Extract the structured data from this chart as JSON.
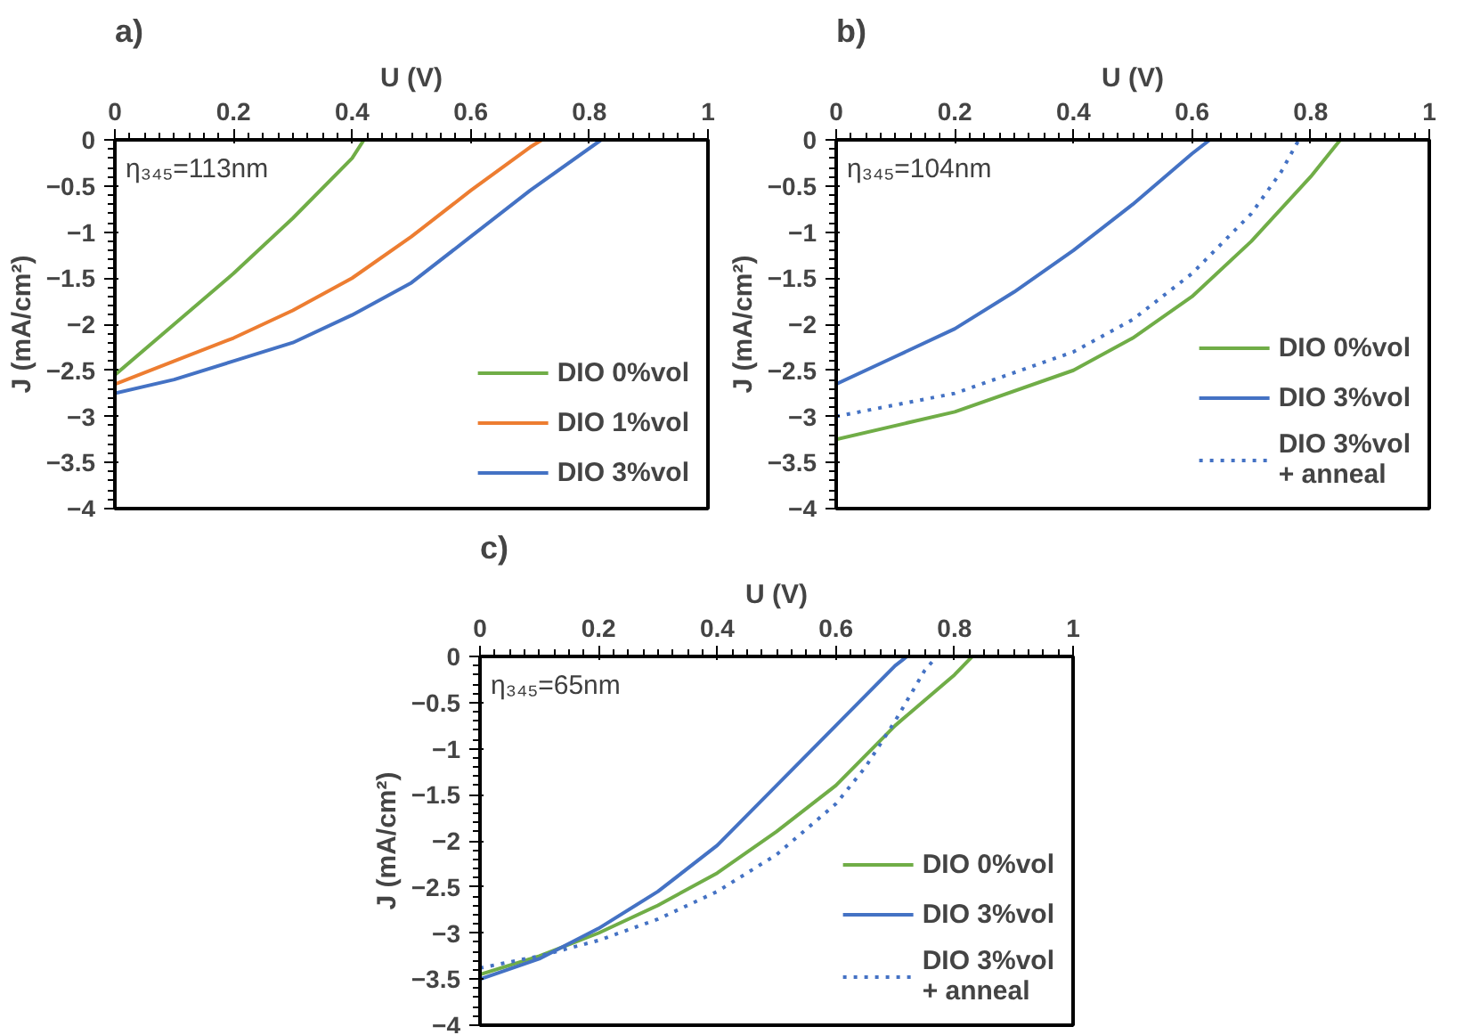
{
  "chart_data": [
    {
      "type": "line",
      "title": "a)",
      "xlabel": "U (V)",
      "ylabel": "J (mA/cm²)",
      "annotations": [
        "η₃₄₅=113nm"
      ],
      "xlim": [
        0,
        1
      ],
      "ylim": [
        -4,
        0
      ],
      "xticks": [
        0,
        0.2,
        0.4,
        0.6,
        0.8,
        1
      ],
      "yticks": [
        0,
        -0.5,
        -1,
        -1.5,
        -2,
        -2.5,
        -3,
        -3.5,
        -4
      ],
      "grid": false,
      "legend": "right",
      "series": [
        {
          "name": "DIO 0%vol",
          "color": "#70ad47",
          "x": [
            0,
            0.1,
            0.2,
            0.3,
            0.4,
            0.42
          ],
          "values": [
            -2.55,
            -2.0,
            -1.45,
            -0.85,
            -0.2,
            0
          ]
        },
        {
          "name": "DIO 1%vol",
          "color": "#ed7d31",
          "x": [
            0,
            0.1,
            0.2,
            0.3,
            0.4,
            0.5,
            0.6,
            0.7,
            0.72
          ],
          "values": [
            -2.65,
            -2.4,
            -2.15,
            -1.85,
            -1.5,
            -1.05,
            -0.55,
            -0.08,
            0
          ]
        },
        {
          "name": "DIO 3%vol",
          "color": "#4472c4",
          "x": [
            0,
            0.1,
            0.2,
            0.3,
            0.4,
            0.5,
            0.6,
            0.7,
            0.82
          ],
          "values": [
            -2.75,
            -2.6,
            -2.4,
            -2.2,
            -1.9,
            -1.55,
            -1.05,
            -0.55,
            0
          ]
        }
      ]
    },
    {
      "type": "line",
      "title": "b)",
      "xlabel": "U (V)",
      "ylabel": "J (mA/cm²)",
      "annotations": [
        "η₃₄₅=104nm"
      ],
      "xlim": [
        0,
        1
      ],
      "ylim": [
        -4,
        0
      ],
      "xticks": [
        0,
        0.2,
        0.4,
        0.6,
        0.8,
        1
      ],
      "yticks": [
        0,
        -0.5,
        -1,
        -1.5,
        -2,
        -2.5,
        -3,
        -3.5,
        -4
      ],
      "grid": false,
      "legend": "right",
      "series": [
        {
          "name": "DIO 0%vol",
          "color": "#70ad47",
          "x": [
            0,
            0.2,
            0.4,
            0.5,
            0.6,
            0.7,
            0.8,
            0.85
          ],
          "values": [
            -3.25,
            -2.95,
            -2.5,
            -2.15,
            -1.7,
            -1.1,
            -0.4,
            0
          ]
        },
        {
          "name": "DIO 3%vol",
          "color": "#4472c4",
          "x": [
            0,
            0.1,
            0.2,
            0.3,
            0.4,
            0.5,
            0.6,
            0.63
          ],
          "values": [
            -2.65,
            -2.35,
            -2.05,
            -1.65,
            -1.2,
            -0.7,
            -0.15,
            0
          ]
        },
        {
          "name": "DIO 3%vol\n+ anneal",
          "color": "#4472c4",
          "line_style": "dotted",
          "x": [
            0,
            0.2,
            0.4,
            0.5,
            0.6,
            0.7,
            0.75,
            0.78
          ],
          "values": [
            -3.0,
            -2.75,
            -2.3,
            -1.95,
            -1.45,
            -0.8,
            -0.35,
            0
          ]
        }
      ]
    },
    {
      "type": "line",
      "title": "c)",
      "xlabel": "U (V)",
      "ylabel": "J (mA/cm²)",
      "annotations": [
        "η₃₄₅=65nm"
      ],
      "xlim": [
        0,
        1
      ],
      "ylim": [
        -4,
        0
      ],
      "xticks": [
        0,
        0.2,
        0.4,
        0.6,
        0.8,
        1
      ],
      "yticks": [
        0,
        -0.5,
        -1,
        -1.5,
        -2,
        -2.5,
        -3,
        -3.5,
        -4
      ],
      "grid": false,
      "legend": "right",
      "series": [
        {
          "name": "DIO 0%vol",
          "color": "#70ad47",
          "x": [
            0,
            0.1,
            0.2,
            0.3,
            0.4,
            0.5,
            0.6,
            0.7,
            0.8,
            0.83
          ],
          "values": [
            -3.45,
            -3.25,
            -3.0,
            -2.7,
            -2.35,
            -1.9,
            -1.4,
            -0.75,
            -0.2,
            0
          ]
        },
        {
          "name": "DIO 3%vol",
          "color": "#4472c4",
          "x": [
            0,
            0.1,
            0.2,
            0.3,
            0.4,
            0.5,
            0.6,
            0.7,
            0.72
          ],
          "values": [
            -3.5,
            -3.28,
            -2.95,
            -2.55,
            -2.05,
            -1.4,
            -0.75,
            -0.1,
            0
          ]
        },
        {
          "name": "DIO 3%vol\n+ anneal",
          "color": "#4472c4",
          "line_style": "dotted",
          "x": [
            0,
            0.1,
            0.2,
            0.3,
            0.4,
            0.5,
            0.6,
            0.65,
            0.7,
            0.75,
            0.77
          ],
          "values": [
            -3.38,
            -3.25,
            -3.08,
            -2.85,
            -2.55,
            -2.15,
            -1.6,
            -1.2,
            -0.7,
            -0.15,
            0
          ]
        }
      ]
    }
  ]
}
